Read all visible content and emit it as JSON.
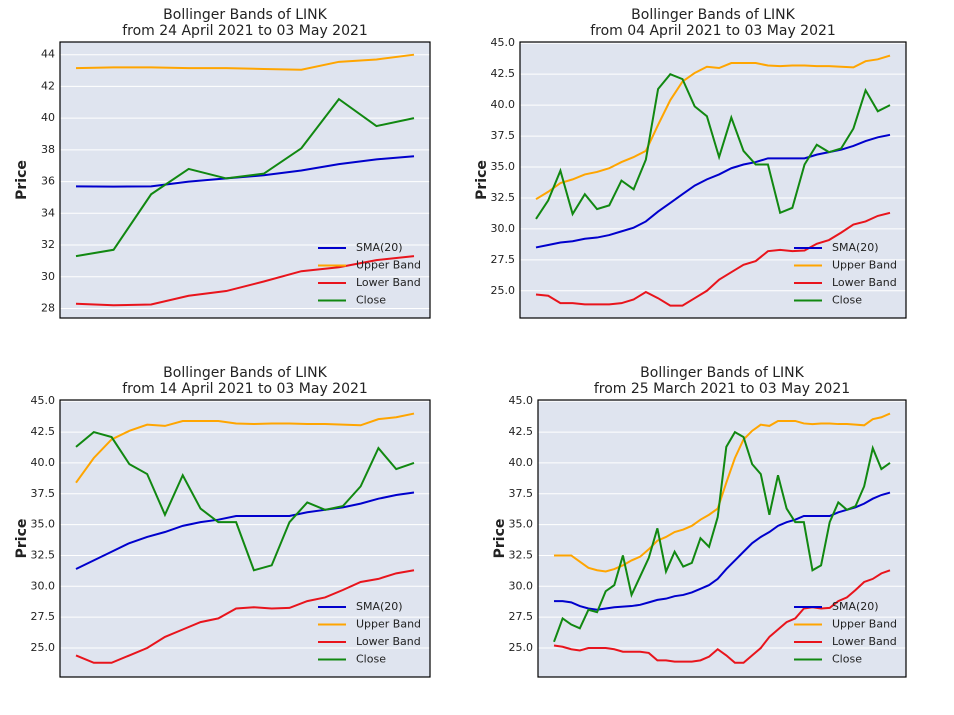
{
  "chart_data": [
    {
      "type": "line",
      "title": "Bollinger Bands of LINK",
      "subtitle": "from 24 April 2021 to 03 May 2021",
      "ylabel": "Price",
      "ylim": [
        27.4,
        44.8
      ],
      "yticks": [
        28,
        30,
        32,
        34,
        36,
        38,
        40,
        42,
        44
      ],
      "grid": true,
      "legend": "lower right",
      "series": [
        {
          "name": "SMA(20)",
          "color": "#0000cc",
          "values": [
            35.7,
            35.68,
            35.7,
            36.0,
            36.2,
            36.4,
            36.7,
            37.1,
            37.4,
            37.6
          ]
        },
        {
          "name": "Upper Band",
          "color": "#ffa500",
          "values": [
            43.15,
            43.2,
            43.2,
            43.15,
            43.15,
            43.1,
            43.05,
            43.55,
            43.7,
            44.0
          ]
        },
        {
          "name": "Lower Band",
          "color": "#e8141c",
          "values": [
            28.3,
            28.2,
            28.25,
            28.8,
            29.1,
            29.7,
            30.35,
            30.6,
            31.05,
            31.3
          ]
        },
        {
          "name": "Close",
          "color": "#118811",
          "values": [
            31.3,
            31.7,
            35.2,
            36.8,
            36.2,
            36.5,
            38.1,
            41.2,
            39.5,
            40.0
          ]
        }
      ]
    },
    {
      "type": "line",
      "title": "Bollinger Bands of LINK",
      "subtitle": "from 04 April 2021 to 03 May 2021",
      "ylabel": "Price",
      "ylim": [
        22.8,
        45.1
      ],
      "yticks": [
        {
          "value": 25,
          "label": "25.0"
        },
        27.5,
        {
          "value": 30,
          "label": "30.0"
        },
        32.5,
        {
          "value": 35,
          "label": "35.0"
        },
        37.5,
        {
          "value": 40,
          "label": "40.0"
        },
        42.5,
        {
          "value": 45,
          "label": "45.0"
        }
      ],
      "grid": true,
      "legend": "lower right",
      "series": [
        {
          "name": "SMA(20)",
          "color": "#0000cc",
          "values": [
            28.5,
            28.7,
            28.9,
            29.0,
            29.2,
            29.3,
            29.5,
            29.8,
            30.1,
            30.6,
            31.4,
            32.1,
            32.8,
            33.5,
            34.0,
            34.4,
            34.9,
            35.2,
            35.4,
            35.7,
            35.7,
            35.7,
            35.7,
            36.0,
            36.2,
            36.4,
            36.7,
            37.1,
            37.4,
            37.6
          ]
        },
        {
          "name": "Upper Band",
          "color": "#ffa500",
          "values": [
            32.4,
            33.0,
            33.7,
            34.0,
            34.4,
            34.6,
            34.9,
            35.4,
            35.8,
            36.3,
            38.4,
            40.4,
            41.9,
            42.6,
            43.1,
            43.0,
            43.4,
            43.4,
            43.4,
            43.2,
            43.15,
            43.2,
            43.2,
            43.15,
            43.15,
            43.1,
            43.05,
            43.55,
            43.7,
            44.0
          ]
        },
        {
          "name": "Lower Band",
          "color": "#e8141c",
          "values": [
            24.7,
            24.6,
            24.0,
            24.0,
            23.9,
            23.9,
            23.9,
            24.0,
            24.3,
            24.9,
            24.4,
            23.8,
            23.8,
            24.4,
            25.0,
            25.9,
            26.5,
            27.1,
            27.4,
            28.2,
            28.3,
            28.2,
            28.25,
            28.8,
            29.1,
            29.7,
            30.35,
            30.6,
            31.05,
            31.3
          ]
        },
        {
          "name": "Close",
          "color": "#118811",
          "values": [
            30.8,
            32.3,
            34.7,
            31.2,
            32.8,
            31.6,
            31.9,
            33.9,
            33.2,
            35.6,
            41.3,
            42.5,
            42.1,
            39.9,
            39.1,
            35.8,
            39.0,
            36.3,
            35.2,
            35.2,
            31.3,
            31.7,
            35.2,
            36.8,
            36.2,
            36.5,
            38.1,
            41.2,
            39.5,
            40.0
          ]
        }
      ]
    },
    {
      "type": "line",
      "title": "Bollinger Bands of LINK",
      "subtitle": "from 14 April 2021 to 03 May 2021",
      "ylabel": "Price",
      "ylim": [
        22.65,
        45.1
      ],
      "yticks": [
        {
          "value": 25,
          "label": "25.0"
        },
        27.5,
        {
          "value": 30,
          "label": "30.0"
        },
        32.5,
        {
          "value": 35,
          "label": "35.0"
        },
        37.5,
        {
          "value": 40,
          "label": "40.0"
        },
        42.5,
        {
          "value": 45,
          "label": "45.0"
        }
      ],
      "grid": true,
      "legend": "lower right",
      "series": [
        {
          "name": "SMA(20)",
          "color": "#0000cc",
          "values": [
            31.4,
            32.1,
            32.8,
            33.5,
            34.0,
            34.4,
            34.9,
            35.2,
            35.4,
            35.7,
            35.7,
            35.7,
            35.7,
            36.0,
            36.2,
            36.4,
            36.7,
            37.1,
            37.4,
            37.6
          ]
        },
        {
          "name": "Upper Band",
          "color": "#ffa500",
          "values": [
            38.4,
            40.4,
            41.9,
            42.6,
            43.1,
            43.0,
            43.4,
            43.4,
            43.4,
            43.2,
            43.15,
            43.2,
            43.2,
            43.15,
            43.15,
            43.1,
            43.05,
            43.55,
            43.7,
            44.0
          ]
        },
        {
          "name": "Lower Band",
          "color": "#e8141c",
          "values": [
            24.4,
            23.8,
            23.8,
            24.4,
            25.0,
            25.9,
            26.5,
            27.1,
            27.4,
            28.2,
            28.3,
            28.2,
            28.25,
            28.8,
            29.1,
            29.7,
            30.35,
            30.6,
            31.05,
            31.3
          ]
        },
        {
          "name": "Close",
          "color": "#118811",
          "values": [
            41.3,
            42.5,
            42.1,
            39.9,
            39.1,
            35.8,
            39.0,
            36.3,
            35.2,
            35.2,
            31.3,
            31.7,
            35.2,
            36.8,
            36.2,
            36.5,
            38.1,
            41.2,
            39.5,
            40.0
          ]
        }
      ]
    },
    {
      "type": "line",
      "title": "Bollinger Bands of LINK",
      "subtitle": "from 25 March 2021 to 03 May 2021",
      "ylabel": "Price",
      "ylim": [
        22.65,
        45.1
      ],
      "yticks": [
        {
          "value": 25,
          "label": "25.0"
        },
        27.5,
        {
          "value": 30,
          "label": "30.0"
        },
        32.5,
        {
          "value": 35,
          "label": "35.0"
        },
        37.5,
        {
          "value": 40,
          "label": "40.0"
        },
        42.5,
        {
          "value": 45,
          "label": "45.0"
        }
      ],
      "grid": true,
      "legend": "lower right",
      "series": [
        {
          "name": "SMA(20)",
          "color": "#0000cc",
          "values": [
            28.8,
            28.8,
            28.7,
            28.4,
            28.2,
            28.1,
            28.2,
            28.3,
            28.35,
            28.4,
            28.5,
            28.7,
            28.9,
            29.0,
            29.2,
            29.3,
            29.5,
            29.8,
            30.1,
            30.6,
            31.4,
            32.1,
            32.8,
            33.5,
            34.0,
            34.4,
            34.9,
            35.2,
            35.4,
            35.7,
            35.7,
            35.7,
            35.7,
            36.0,
            36.2,
            36.4,
            36.7,
            37.1,
            37.4,
            37.6
          ]
        },
        {
          "name": "Upper Band",
          "color": "#ffa500",
          "values": [
            32.5,
            32.5,
            32.5,
            32.0,
            31.5,
            31.3,
            31.2,
            31.4,
            31.7,
            32.1,
            32.4,
            33.0,
            33.7,
            34.0,
            34.4,
            34.6,
            34.9,
            35.4,
            35.8,
            36.3,
            38.4,
            40.4,
            41.9,
            42.6,
            43.1,
            43.0,
            43.4,
            43.4,
            43.4,
            43.2,
            43.15,
            43.2,
            43.2,
            43.15,
            43.15,
            43.1,
            43.05,
            43.55,
            43.7,
            44.0
          ]
        },
        {
          "name": "Lower Band",
          "color": "#e8141c",
          "values": [
            25.2,
            25.1,
            24.9,
            24.8,
            25.0,
            25.0,
            25.0,
            24.9,
            24.7,
            24.7,
            24.7,
            24.6,
            24.0,
            24.0,
            23.9,
            23.9,
            23.9,
            24.0,
            24.3,
            24.9,
            24.4,
            23.8,
            23.8,
            24.4,
            25.0,
            25.9,
            26.5,
            27.1,
            27.4,
            28.2,
            28.3,
            28.2,
            28.25,
            28.8,
            29.1,
            29.7,
            30.35,
            30.6,
            31.05,
            31.3
          ]
        },
        {
          "name": "Close",
          "color": "#118811",
          "values": [
            25.5,
            27.4,
            26.9,
            26.6,
            28.1,
            27.9,
            29.6,
            30.1,
            32.5,
            29.3,
            30.8,
            32.3,
            34.7,
            31.2,
            32.8,
            31.6,
            31.9,
            33.9,
            33.2,
            35.6,
            41.3,
            42.5,
            42.1,
            39.9,
            39.1,
            35.8,
            39.0,
            36.3,
            35.2,
            35.2,
            31.3,
            31.7,
            35.2,
            36.8,
            36.2,
            36.5,
            38.1,
            41.2,
            39.5,
            40.0
          ]
        }
      ]
    }
  ]
}
